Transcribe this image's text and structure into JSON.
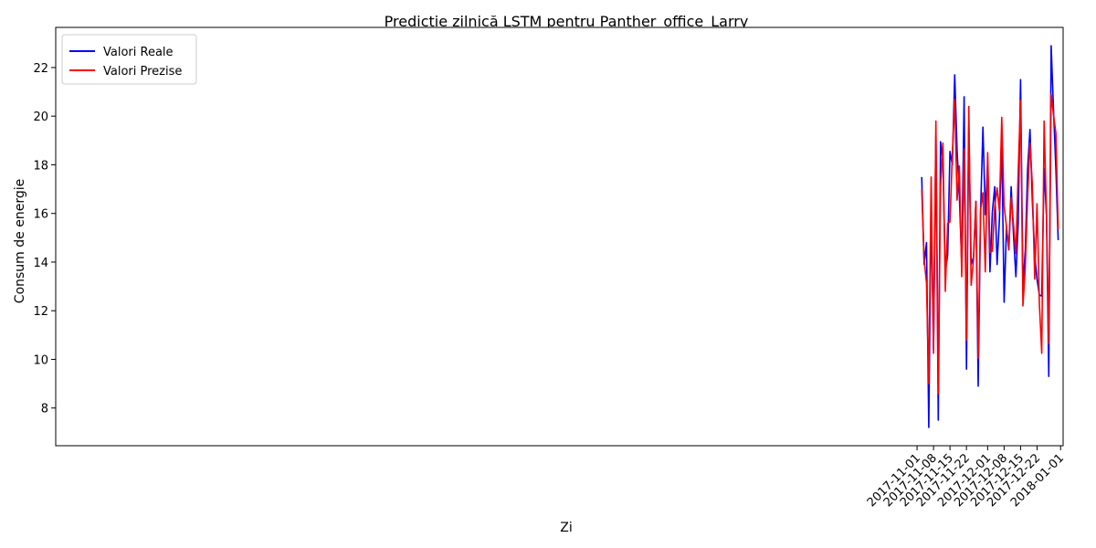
{
  "chart_data": {
    "type": "line",
    "title": "Predicție zilnică LSTM pentru Panther_office_Larry",
    "xlabel": "Zi",
    "ylabel": "Consum de energie",
    "x_ticks": [
      "2017-11-01",
      "2017-11-08",
      "2017-11-15",
      "2017-11-22",
      "2017-12-01",
      "2017-12-08",
      "2017-12-15",
      "2017-12-22",
      "2018-01-01"
    ],
    "y_ticks": [
      8,
      10,
      12,
      14,
      16,
      18,
      20,
      22
    ],
    "xlim": [
      "2016-10-30T22:00",
      "2018-01-02T02:00"
    ],
    "ylim": [
      6.45,
      23.65
    ],
    "grid": false,
    "legend_position": "top-left",
    "x": [
      "2017-11-03",
      "2017-11-04",
      "2017-11-05",
      "2017-11-06",
      "2017-11-07",
      "2017-11-08",
      "2017-11-09",
      "2017-11-10",
      "2017-11-11",
      "2017-11-12",
      "2017-11-13",
      "2017-11-14",
      "2017-11-15",
      "2017-11-16",
      "2017-11-17",
      "2017-11-18",
      "2017-11-19",
      "2017-11-20",
      "2017-11-21",
      "2017-11-22",
      "2017-11-23",
      "2017-11-24",
      "2017-11-25",
      "2017-11-26",
      "2017-11-27",
      "2017-11-28",
      "2017-11-29",
      "2017-11-30",
      "2017-12-01",
      "2017-12-02",
      "2017-12-03",
      "2017-12-04",
      "2017-12-05",
      "2017-12-06",
      "2017-12-07",
      "2017-12-08",
      "2017-12-09",
      "2017-12-10",
      "2017-12-11",
      "2017-12-12",
      "2017-12-13",
      "2017-12-14",
      "2017-12-15",
      "2017-12-16",
      "2017-12-17",
      "2017-12-18",
      "2017-12-19",
      "2017-12-20",
      "2017-12-21",
      "2017-12-22",
      "2017-12-23",
      "2017-12-24",
      "2017-12-25",
      "2017-12-26",
      "2017-12-27",
      "2017-12-28",
      "2017-12-29",
      "2017-12-30",
      "2017-12-31"
    ],
    "series": [
      {
        "name": "Valori Reale",
        "color": "#0000ff",
        "values": [
          17.5,
          13.9,
          14.8,
          7.2,
          16.4,
          10.4,
          19.2,
          7.5,
          18.95,
          18.1,
          13.6,
          14.3,
          18.55,
          18.0,
          21.7,
          18.6,
          16.7,
          13.9,
          20.8,
          9.6,
          19.6,
          13.9,
          14.2,
          16.5,
          8.9,
          16.0,
          19.55,
          15.95,
          18.1,
          13.6,
          16.05,
          17.1,
          13.9,
          15.7,
          18.95,
          12.35,
          15.45,
          14.5,
          17.1,
          15.1,
          13.4,
          15.6,
          21.5,
          13.0,
          14.5,
          17.8,
          19.45,
          16.5,
          14.3,
          13.3,
          12.65,
          12.6,
          17.85,
          15.9,
          9.3,
          22.9,
          20.25,
          17.8,
          14.9
        ]
      },
      {
        "name": "Valori Prezise",
        "color": "#ff0000",
        "values": [
          17.0,
          14.1,
          13.15,
          9.0,
          17.5,
          10.25,
          19.8,
          8.6,
          17.1,
          18.9,
          12.8,
          15.6,
          15.65,
          18.4,
          20.7,
          16.55,
          17.95,
          13.4,
          18.65,
          10.8,
          20.4,
          13.05,
          14.1,
          16.5,
          10.05,
          16.15,
          16.85,
          13.6,
          18.5,
          14.4,
          14.45,
          16.25,
          17.05,
          16.1,
          19.95,
          16.3,
          15.45,
          14.5,
          16.65,
          15.55,
          14.35,
          17.7,
          20.65,
          12.2,
          13.8,
          16.65,
          18.9,
          17.2,
          13.3,
          16.4,
          12.3,
          10.25,
          19.8,
          15.95,
          10.65,
          20.9,
          20.05,
          19.3,
          15.35
        ]
      }
    ]
  }
}
